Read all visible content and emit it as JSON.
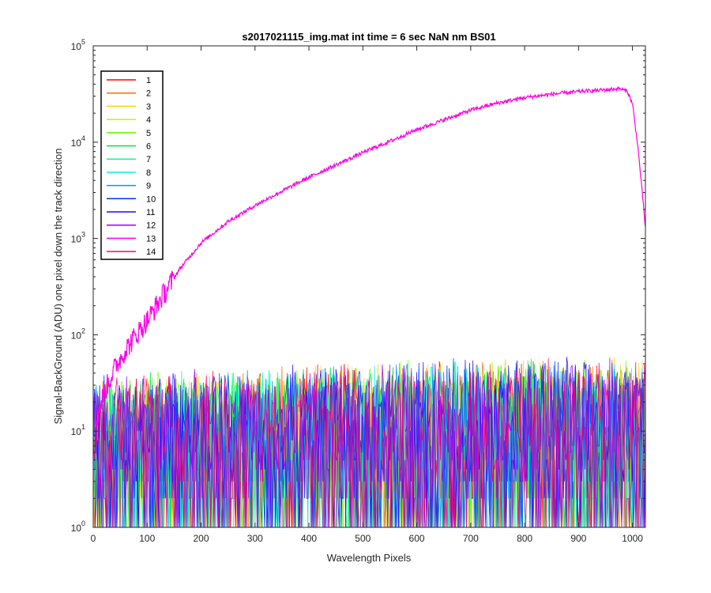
{
  "chart_data": {
    "type": "line",
    "title": "s2017021115_img.mat int time = 6 sec  NaN nm BS01",
    "xlabel": "Wavelength Pixels",
    "ylabel": "Signal-BackGround (ADU) one pixel down the track direction",
    "xlim": [
      0,
      1024
    ],
    "ylim": [
      1,
      100000
    ],
    "yscale": "log",
    "grid": false,
    "legend_location": "top-left",
    "x_ticks": [
      0,
      100,
      200,
      300,
      400,
      500,
      600,
      700,
      800,
      900,
      1000
    ],
    "y_ticks": [
      1,
      10,
      100,
      1000,
      10000,
      100000
    ],
    "y_tick_labels": [
      {
        "base": "10",
        "exp": "0"
      },
      {
        "base": "10",
        "exp": "1"
      },
      {
        "base": "10",
        "exp": "2"
      },
      {
        "base": "10",
        "exp": "3"
      },
      {
        "base": "10",
        "exp": "4"
      },
      {
        "base": "10",
        "exp": "5"
      }
    ],
    "noise_series_note_levels": {
      "low_pixels_peak": 40,
      "high_pixels_peak": 60,
      "floor": 1
    },
    "series": [
      {
        "name": "1",
        "color": "#ff0000",
        "kind": "noise"
      },
      {
        "name": "2",
        "color": "#ff6a00",
        "kind": "noise"
      },
      {
        "name": "3",
        "color": "#ffd400",
        "kind": "noise"
      },
      {
        "name": "4",
        "color": "#c8f000",
        "kind": "noise"
      },
      {
        "name": "5",
        "color": "#6aff00",
        "kind": "noise"
      },
      {
        "name": "6",
        "color": "#00e640",
        "kind": "noise"
      },
      {
        "name": "7",
        "color": "#00ff9a",
        "kind": "noise"
      },
      {
        "name": "8",
        "color": "#00f0f0",
        "kind": "noise"
      },
      {
        "name": "9",
        "color": "#0096ff",
        "kind": "noise"
      },
      {
        "name": "10",
        "color": "#0032ff",
        "kind": "noise"
      },
      {
        "name": "11",
        "color": "#3200ff",
        "kind": "noise"
      },
      {
        "name": "12",
        "color": "#9600ff",
        "kind": "noise"
      },
      {
        "name": "13",
        "color": "#ff00e6",
        "kind": "signal",
        "points": [
          [
            5,
            12
          ],
          [
            20,
            25
          ],
          [
            40,
            45
          ],
          [
            60,
            70
          ],
          [
            80,
            100
          ],
          [
            100,
            140
          ],
          [
            130,
            260
          ],
          [
            160,
            480
          ],
          [
            200,
            900
          ],
          [
            250,
            1500
          ],
          [
            300,
            2200
          ],
          [
            350,
            3100
          ],
          [
            400,
            4300
          ],
          [
            450,
            5800
          ],
          [
            500,
            7800
          ],
          [
            550,
            10200
          ],
          [
            600,
            13500
          ],
          [
            650,
            17000
          ],
          [
            700,
            21500
          ],
          [
            750,
            25500
          ],
          [
            800,
            29000
          ],
          [
            850,
            31500
          ],
          [
            900,
            33500
          ],
          [
            950,
            35000
          ],
          [
            975,
            36000
          ],
          [
            990,
            34000
          ],
          [
            1000,
            25000
          ],
          [
            1010,
            9000
          ],
          [
            1018,
            3000
          ],
          [
            1024,
            1300
          ]
        ]
      },
      {
        "name": "14",
        "color": "#ff0078",
        "kind": "noise"
      }
    ]
  }
}
